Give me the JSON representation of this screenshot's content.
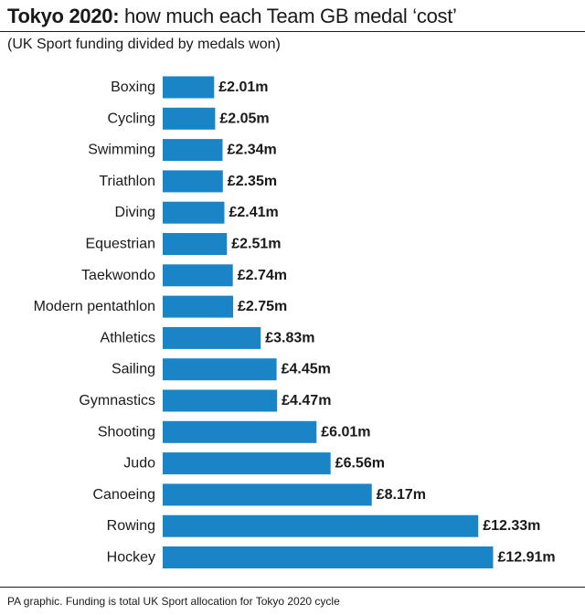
{
  "header": {
    "title_bold": "Tokyo 2020:",
    "title_rest": " how much each Team GB medal ‘cost’",
    "subtitle": "(UK Sport funding divided by medals won)"
  },
  "footer": {
    "source": "PA graphic. Funding is total UK Sport allocation for Tokyo 2020 cycle"
  },
  "colors": {
    "bar": "#1a85c6",
    "text": "#1a1a1a"
  },
  "chart_data": {
    "type": "bar",
    "orientation": "horizontal",
    "title": "Tokyo 2020: how much each Team GB medal ‘cost’",
    "subtitle": "(UK Sport funding divided by medals won)",
    "categories": [
      "Boxing",
      "Cycling",
      "Swimming",
      "Triathlon",
      "Diving",
      "Equestrian",
      "Taekwondo",
      "Modern pentathlon",
      "Athletics",
      "Sailing",
      "Gymnastics",
      "Shooting",
      "Judo",
      "Canoeing",
      "Rowing",
      "Hockey"
    ],
    "values": [
      2.01,
      2.05,
      2.34,
      2.35,
      2.41,
      2.51,
      2.74,
      2.75,
      3.83,
      4.45,
      4.47,
      6.01,
      6.56,
      8.17,
      12.33,
      12.91
    ],
    "value_labels": [
      "£2.01m",
      "£2.05m",
      "£2.34m",
      "£2.35m",
      "£2.41m",
      "£2.51m",
      "£2.74m",
      "£2.75m",
      "£3.83m",
      "£4.45m",
      "£4.47m",
      "£6.01m",
      "£6.56m",
      "£8.17m",
      "£12.33m",
      "£12.91m"
    ],
    "xlim": [
      0,
      12.91
    ],
    "grid": false,
    "legend": "none"
  }
}
